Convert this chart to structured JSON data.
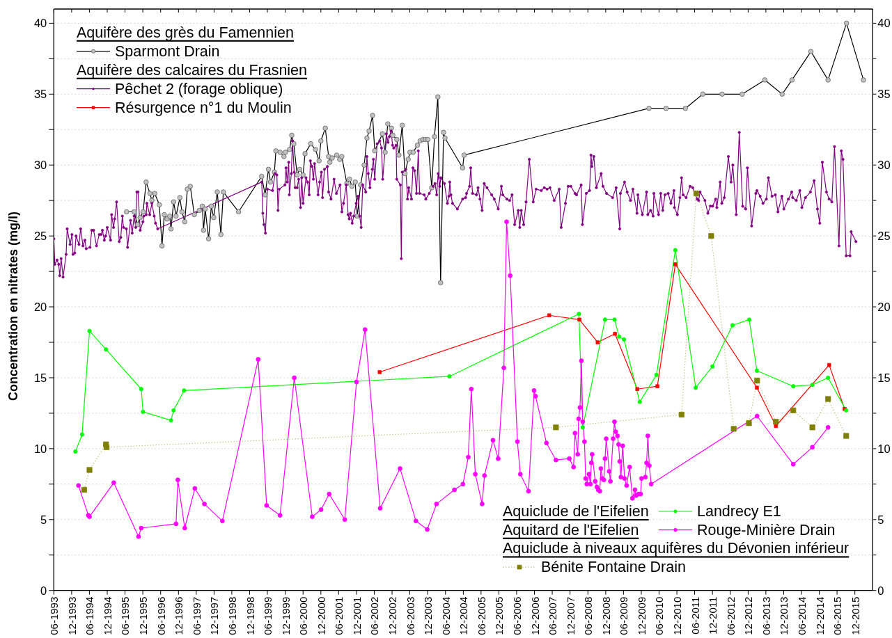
{
  "chart_data": {
    "type": "line",
    "ylabel": "Concentration en nitrates (mg/l)",
    "annotations": [
      "Aquifère des grès du Famennien",
      "Aquifère des calcaires du Frasnien",
      "Aquiclude de l'Eifelien",
      "Aquitard de l'Eifelien",
      "Aquiclude à niveaux aquifères du Dévonien inférieur"
    ],
    "legend": "center",
    "grid": "y",
    "xlim": [
      "1993-06",
      "2016-06"
    ],
    "xticks": [
      {
        "value": "1993-06",
        "label": "06-1993"
      },
      {
        "value": "1993-12",
        "label": "12-1993"
      },
      {
        "value": "1994-06",
        "label": "06-1994"
      },
      {
        "value": "1994-12",
        "label": "12-1994"
      },
      {
        "value": "1995-06",
        "label": "06-1995"
      },
      {
        "value": "1995-12",
        "label": "12-1995"
      },
      {
        "value": "1996-06",
        "label": "06-1996"
      },
      {
        "value": "1996-12",
        "label": "12-1996"
      },
      {
        "value": "1997-06",
        "label": "06-1997"
      },
      {
        "value": "1997-12",
        "label": "12-1997"
      },
      {
        "value": "1998-06",
        "label": "06-1998"
      },
      {
        "value": "1998-12",
        "label": "12-1998"
      },
      {
        "value": "1999-06",
        "label": "06-1999"
      },
      {
        "value": "1999-12",
        "label": "12-1999"
      },
      {
        "value": "2000-06",
        "label": "06-2000"
      },
      {
        "value": "2000-12",
        "label": "12-2000"
      },
      {
        "value": "2001-06",
        "label": "06-2001"
      },
      {
        "value": "2001-12",
        "label": "12-2001"
      },
      {
        "value": "2002-06",
        "label": "06-2002"
      },
      {
        "value": "2002-12",
        "label": "12-2002"
      },
      {
        "value": "2003-06",
        "label": "06-2003"
      },
      {
        "value": "2003-12",
        "label": "12-2003"
      },
      {
        "value": "2004-06",
        "label": "06-2004"
      },
      {
        "value": "2004-12",
        "label": "12-2004"
      },
      {
        "value": "2005-06",
        "label": "06-2005"
      },
      {
        "value": "2005-12",
        "label": "12-2005"
      },
      {
        "value": "2006-06",
        "label": "06-2006"
      },
      {
        "value": "2006-12",
        "label": "12-2006"
      },
      {
        "value": "2007-06",
        "label": "06-2007"
      },
      {
        "value": "2007-12",
        "label": "12-2007"
      },
      {
        "value": "2008-06",
        "label": "06-2008"
      },
      {
        "value": "2008-12",
        "label": "12-2008"
      },
      {
        "value": "2009-06",
        "label": "06-2009"
      },
      {
        "value": "2009-12",
        "label": "12-2009"
      },
      {
        "value": "2010-06",
        "label": "06-2010"
      },
      {
        "value": "2010-12",
        "label": "12-2010"
      },
      {
        "value": "2011-06",
        "label": "06-2011"
      },
      {
        "value": "2011-12",
        "label": "12-2011"
      },
      {
        "value": "2012-06",
        "label": "06-2012"
      },
      {
        "value": "2012-12",
        "label": "12-2012"
      },
      {
        "value": "2013-06",
        "label": "06-2013"
      },
      {
        "value": "2013-12",
        "label": "12-2013"
      },
      {
        "value": "2014-06",
        "label": "06-2014"
      },
      {
        "value": "2014-12",
        "label": "12-2014"
      },
      {
        "value": "2015-06",
        "label": "06-2015"
      },
      {
        "value": "2015-12",
        "label": "12-2015"
      }
    ],
    "ylim": [
      0,
      41
    ],
    "yticks": [
      0,
      {
        "value": 2.5,
        "label": null
      },
      5,
      {
        "value": 7.5,
        "label": null
      },
      10,
      {
        "value": 12.5,
        "label": null
      },
      15,
      {
        "value": 17.5,
        "label": null
      },
      20,
      {
        "value": 22.5,
        "label": null
      },
      25,
      {
        "value": 27.5,
        "label": null
      },
      30,
      {
        "value": 32.5,
        "label": null
      },
      35,
      {
        "value": 37.5,
        "label": null
      },
      40
    ],
    "y2lim": [
      0,
      41
    ],
    "y2ticks": [
      0,
      {
        "value": 2.5,
        "label": null
      },
      5,
      {
        "value": 7.5,
        "label": null
      },
      10,
      {
        "value": 12.5,
        "label": null
      },
      15,
      {
        "value": 17.5,
        "label": null
      },
      20,
      {
        "value": 22.5,
        "label": null
      },
      25,
      {
        "value": 27.5,
        "label": null
      },
      30,
      {
        "value": 32.5,
        "label": null
      },
      35,
      {
        "value": 37.5,
        "label": null
      },
      40
    ],
    "series": [
      {
        "name": "Sparmont Drain",
        "color": "#000000",
        "marker": "circle",
        "line_style": "solid",
        "x": [
          "1995-06-17",
          "1995-09-03",
          "1995-10-08",
          "1995-11-03",
          "1995-12-04",
          "1996-01-04",
          "1996-02-12",
          "1996-03-03",
          "1996-04-01",
          "1996-05-18",
          "1996-06-15",
          "1996-07-08",
          "1996-08-06",
          "1996-09-02",
          "1996-09-15",
          "1996-10-12",
          "1996-11-06",
          "1996-12-15",
          "1997-01-06",
          "1997-02-03",
          "1997-03-02",
          "1997-04-01",
          "1997-05-12",
          "1997-07-03",
          "1997-08-03",
          "1997-08-15",
          "1997-09-01",
          "1997-10-06",
          "1997-11-03",
          "1997-11-27",
          "1998-01-03",
          "1998-02-09",
          "1998-03-06",
          "1998-08-09",
          "1999-04-03",
          "1999-05-09",
          "1999-06-12",
          "1999-07-03",
          "1999-08-12",
          "1999-08-27",
          "1999-10-09",
          "1999-11-18",
          "1999-12-03",
          "2000-01-15",
          "2000-02-06",
          "2000-02-27",
          "2000-04-01",
          "2000-04-27",
          "2000-06-01",
          "2000-06-21",
          "2000-08-19",
          "2000-10-06",
          "2000-11-12",
          "2000-12-01",
          "2001-01-15",
          "2001-02-18",
          "2001-03-03",
          "2001-03-27",
          "2001-05-12",
          "2001-06-12",
          "2001-07-03",
          "2001-08-24",
          "2001-09-21",
          "2001-10-15",
          "2001-11-18",
          "2001-12-09",
          "2002-01-12",
          "2002-02-18",
          "2002-03-18",
          "2002-04-09",
          "2002-05-15",
          "2002-06-06",
          "2002-08-24",
          "2002-09-21",
          "2002-10-18",
          "2002-11-24",
          "2002-12-09",
          "2003-01-18",
          "2003-02-09",
          "2003-03-15",
          "2003-04-12",
          "2003-05-15",
          "2003-06-03",
          "2003-07-06",
          "2003-08-18",
          "2003-09-15",
          "2003-10-15",
          "2003-11-09",
          "2003-12-03",
          "2004-01-12",
          "2004-02-09",
          "2004-03-15",
          "2004-04-12",
          "2004-05-12",
          "2004-05-27",
          "2004-11-24",
          "2004-12-09",
          "2010-02-18",
          "2010-08-12",
          "2011-02-27",
          "2011-08-24",
          "2012-03-09",
          "2012-10-01",
          "2013-05-21",
          "2013-11-15",
          "2014-02-24",
          "2014-09-06",
          "2015-03-01",
          "2015-09-06",
          "2016-02-27"
        ],
        "values": [
          26.7,
          26.7,
          25.8,
          26.3,
          26.7,
          28.8,
          28.0,
          27.5,
          28.0,
          27.2,
          24.3,
          26.5,
          26.2,
          26.4,
          25.5,
          27.4,
          26.4,
          27.7,
          26.7,
          26.0,
          28.3,
          28.5,
          26.5,
          26.8,
          27.1,
          25.4,
          26.9,
          24.8,
          27.1,
          26.3,
          28.1,
          25.1,
          28.1,
          26.7,
          29.2,
          27.9,
          29.7,
          28.8,
          29.5,
          31.0,
          30.9,
          30.6,
          30.9,
          31.1,
          32.1,
          31.5,
          29.3,
          29.7,
          29.3,
          30.8,
          31.5,
          31.1,
          30.3,
          31.7,
          32.6,
          30.6,
          30.2,
          30.5,
          30.7,
          30.4,
          30.6,
          28.7,
          29.0,
          28.5,
          28.8,
          26.4,
          28.6,
          30.0,
          31.9,
          32.4,
          33.5,
          31.0,
          32.2,
          30.9,
          32.9,
          32.6,
          32.1,
          31.8,
          30.7,
          32.8,
          29.4,
          30.4,
          30.9,
          30.9,
          31.4,
          31.7,
          31.8,
          31.8,
          31.8,
          28.4,
          32.0,
          34.8,
          21.7,
          32.3,
          31.9,
          29.8,
          30.7,
          34.0,
          34.0,
          34.0,
          35.0,
          35.0,
          35.0,
          36.0,
          35.0,
          36.0,
          38.0,
          36.0,
          40.0,
          36.0
        ]
      },
      {
        "name": "Pêchet 2 (forage oblique)",
        "color": "#800080",
        "marker": "circle",
        "line_style": "solid",
        "x": [
          "1993-06-01",
          "1993-06-11",
          "1993-07-04",
          "1993-07-21",
          "1993-08-01",
          "1993-08-15",
          "1993-09-04",
          "1993-10-05",
          "1993-10-16",
          "1993-11-15",
          "1993-12-04",
          "1993-12-15",
          "1994-01-02",
          "1994-01-15",
          "1994-02-14",
          "1994-03-03",
          "1994-03-27",
          "1994-04-15",
          "1994-04-29",
          "1994-06-07",
          "1994-06-25",
          "1994-07-14",
          "1994-08-13",
          "1994-09-10",
          "1994-09-29",
          "1994-10-13",
          "1994-11-01",
          "1994-11-14",
          "1994-12-01",
          "1995-01-04",
          "1995-01-15",
          "1995-02-04",
          "1995-02-15",
          "1995-03-07",
          "1995-04-03",
          "1995-04-19",
          "1995-05-05",
          "1995-05-17",
          "1995-06-15",
          "1995-06-28",
          "1995-07-28",
          "1995-08-14",
          "1995-09-03",
          "1995-09-19",
          "1995-10-01",
          "1995-10-13",
          "1995-11-04",
          "1995-12-02",
          "1995-12-11",
          "1996-01-05",
          "1996-01-12",
          "1996-02-10",
          "1996-03-03",
          "1996-03-27",
          "1996-04-09",
          "1996-05-02",
          "1999-04-04",
          "1999-04-15",
          "1999-04-27",
          "1999-05-12",
          "1999-06-01",
          "1999-07-24",
          "1999-08-19",
          "1999-09-06",
          "1999-09-18",
          "1999-09-30",
          "1999-11-28",
          "1999-12-09",
          "1999-12-21",
          "2000-01-06",
          "2000-01-12",
          "2000-02-02",
          "2000-02-13",
          "2000-03-02",
          "2000-03-12",
          "2000-04-01",
          "2000-04-17",
          "2000-05-06",
          "2000-05-18",
          "2000-06-01",
          "2000-07-01",
          "2000-07-18",
          "2000-08-03",
          "2000-08-15",
          "2000-09-01",
          "2000-09-15",
          "2000-09-27",
          "2000-11-02",
          "2000-11-18",
          "2000-12-06",
          "2000-12-18",
          "2001-01-06",
          "2001-02-06",
          "2001-02-18",
          "2001-03-15",
          "2001-04-15",
          "2001-05-09",
          "2001-06-15",
          "2001-07-04",
          "2001-07-21",
          "2001-08-18",
          "2001-09-06",
          "2001-09-18",
          "2001-10-01",
          "2001-10-18",
          "2001-11-03",
          "2001-11-28",
          "2001-12-18",
          "2002-01-03",
          "2002-01-18",
          "2002-02-03",
          "2002-03-06",
          "2002-03-18",
          "2002-04-01",
          "2002-04-18",
          "2002-05-12",
          "2002-05-24",
          "2002-06-06",
          "2002-07-01",
          "2002-07-27",
          "2002-08-15",
          "2002-08-27",
          "2002-10-03",
          "2002-10-21",
          "2002-11-03",
          "2002-11-21",
          "2002-12-06",
          "2002-12-18",
          "2003-01-12",
          "2003-01-18",
          "2003-02-24",
          "2003-03-06",
          "2003-03-15",
          "2003-04-21",
          "2003-05-09",
          "2003-05-21",
          "2003-06-18",
          "2003-07-03",
          "2003-07-21",
          "2003-08-09",
          "2003-08-27",
          "2003-09-09",
          "2003-10-27",
          "2003-11-12",
          "2003-12-18",
          "2004-01-27",
          "2004-02-15",
          "2004-03-03",
          "2004-03-18",
          "2004-04-03",
          "2004-04-15",
          "2004-05-21",
          "2004-06-21",
          "2004-07-06",
          "2004-07-15",
          "2004-07-27",
          "2004-08-12",
          "2004-10-01",
          "2004-11-24",
          "2004-12-24",
          "2005-01-03",
          "2005-02-03",
          "2005-02-15",
          "2005-03-06",
          "2005-04-15",
          "2005-05-01",
          "2005-05-21",
          "2005-06-12",
          "2005-07-03",
          "2005-08-01",
          "2005-09-18",
          "2005-10-15",
          "2005-11-24",
          "2005-12-27",
          "2006-01-09",
          "2006-02-21",
          "2006-03-21",
          "2006-04-15",
          "2006-05-12",
          "2006-06-18",
          "2006-07-03",
          "2006-07-18",
          "2006-08-12",
          "2006-09-06",
          "2006-10-09",
          "2006-11-18",
          "2006-12-18",
          "2007-02-09",
          "2007-03-12",
          "2007-04-09",
          "2007-05-09",
          "2007-06-21",
          "2007-08-12",
          "2007-09-01",
          "2007-10-15",
          "2007-11-12",
          "2007-12-09",
          "2008-01-21",
          "2008-02-06",
          "2008-03-24",
          "2008-04-06",
          "2008-05-15",
          "2008-06-18",
          "2008-07-03",
          "2008-07-12",
          "2008-08-01",
          "2008-08-27",
          "2008-10-15",
          "2008-11-03",
          "2008-12-09",
          "2009-02-09",
          "2009-03-18",
          "2009-04-24",
          "2009-05-01",
          "2009-06-12",
          "2009-07-09",
          "2009-08-12",
          "2009-09-06",
          "2009-10-18",
          "2009-10-27",
          "2009-12-12",
          "2010-01-24",
          "2010-02-06",
          "2010-03-06",
          "2010-04-01",
          "2010-04-09",
          "2010-05-27",
          "2010-06-18",
          "2010-07-09",
          "2010-08-01",
          "2010-09-03",
          "2010-10-01",
          "2010-11-01",
          "2010-11-06",
          "2010-12-06",
          "2011-01-01",
          "2011-01-18",
          "2011-02-03",
          "2011-03-06",
          "2011-04-15",
          "2011-05-12",
          "2011-06-27",
          "2011-07-12",
          "2011-07-27",
          "2011-09-15",
          "2011-10-15",
          "2011-11-09",
          "2011-12-03",
          "2012-01-03",
          "2012-01-15",
          "2012-02-18",
          "2012-03-06",
          "2012-04-01",
          "2012-05-12",
          "2012-06-09",
          "2012-06-27",
          "2012-08-01",
          "2012-09-01",
          "2012-10-06",
          "2012-11-06",
          "2012-11-24",
          "2013-01-06",
          "2013-02-18",
          "2013-03-01",
          "2013-04-03",
          "2013-05-03",
          "2013-06-06",
          "2013-06-27",
          "2013-08-03",
          "2013-09-06",
          "2013-10-03",
          "2013-11-12",
          "2013-12-03",
          "2014-01-18",
          "2014-02-21",
          "2014-03-03",
          "2014-04-09",
          "2014-05-15",
          "2014-06-06",
          "2014-07-12",
          "2014-09-01",
          "2014-10-09",
          "2014-11-12",
          "2014-12-06",
          "2015-01-01",
          "2015-02-12",
          "2015-03-12",
          "2015-04-09",
          "2015-05-06",
          "2015-06-21",
          "2015-07-15",
          "2015-08-01",
          "2015-09-03",
          "2015-10-12",
          "2015-10-24",
          "2015-12-12"
        ],
        "values": [
          24.8,
          23.0,
          23.3,
          23.0,
          22.2,
          23.4,
          22.1,
          23.7,
          25.5,
          24.4,
          25.1,
          23.7,
          23.8,
          25.0,
          24.4,
          25.5,
          24.3,
          24.7,
          24.1,
          24.2,
          25.4,
          25.4,
          24.3,
          25.1,
          25.1,
          25.4,
          24.7,
          25.0,
          25.6,
          24.7,
          26.5,
          25.6,
          26.2,
          27.4,
          24.6,
          24.9,
          26.4,
          25.6,
          25.5,
          24.2,
          26.1,
          25.2,
          26.4,
          25.6,
          28.1,
          28.1,
          25.4,
          26.0,
          26.4,
          26.5,
          27.3,
          26.5,
          27.3,
          26.4,
          25.9,
          25.5,
          28.8,
          26.6,
          25.8,
          25.2,
          28.3,
          28.2,
          29.4,
          29.3,
          26.8,
          28.3,
          28.6,
          29.8,
          28.8,
          30.2,
          27.9,
          29.4,
          31.7,
          29.5,
          28.4,
          28.4,
          29.0,
          27.0,
          29.1,
          27.3,
          29.1,
          28.8,
          27.9,
          30.3,
          29.9,
          29.0,
          30.1,
          27.9,
          28.8,
          29.5,
          27.7,
          29.7,
          29.9,
          28.1,
          27.6,
          29.0,
          28.0,
          28.6,
          26.7,
          27.3,
          28.6,
          26.5,
          26.2,
          26.6,
          25.9,
          26.4,
          27.3,
          27.8,
          26.4,
          25.6,
          28.6,
          28.1,
          30.6,
          29.4,
          28.4,
          29.7,
          30.4,
          29.0,
          31.5,
          31.7,
          31.2,
          29.0,
          32.2,
          31.6,
          32.0,
          32.4,
          31.4,
          31.2,
          31.4,
          29.0,
          28.6,
          23.4,
          29.5,
          29.7,
          27.6,
          28.4,
          27.6,
          29.8,
          29.6,
          28.0,
          31.0,
          28.0,
          27.9,
          27.6,
          28.0,
          28.5,
          28.7,
          27.9,
          29.4,
          28.5,
          29.1,
          28.7,
          27.3,
          27.8,
          28.8,
          27.9,
          27.3,
          26.9,
          27.6,
          27.7,
          28.0,
          28.5,
          29.8,
          28.0,
          27.9,
          28.4,
          27.6,
          26.8,
          28.7,
          28.4,
          27.9,
          27.6,
          26.9,
          28.5,
          27.9,
          27.6,
          27.5,
          27.9,
          25.8,
          26.8,
          25.6,
          26.8,
          25.8,
          27.4,
          30.4,
          27.4,
          28.3,
          28.2,
          28.4,
          28.3,
          28.4,
          27.5,
          28.3,
          25.6,
          27.3,
          28.5,
          28.5,
          28.0,
          27.9,
          28.6,
          25.8,
          28.0,
          28.2,
          30.7,
          29.9,
          30.6,
          28.4,
          29.4,
          28.5,
          28.0,
          27.7,
          28.4,
          25.5,
          28.0,
          28.8,
          28.1,
          27.5,
          28.3,
          26.6,
          27.9,
          26.5,
          28.1,
          26.5,
          26.8,
          26.4,
          28.0,
          26.5,
          28.0,
          26.8,
          27.9,
          28.0,
          27.3,
          28.2,
          27.0,
          26.5,
          27.7,
          29.1,
          27.9,
          27.7,
          28.5,
          28.4,
          27.6,
          27.5,
          28.1,
          27.5,
          26.6,
          27.1,
          27.1,
          27.6,
          27.0,
          28.8,
          27.3,
          27.7,
          30.6,
          28.8,
          30.0,
          26.5,
          32.3,
          27.1,
          26.9,
          29.8,
          25.7,
          28.0,
          28.2,
          27.8,
          27.3,
          27.6,
          29.1,
          27.8,
          27.9,
          26.7,
          27.8,
          26.9,
          27.6,
          28.1,
          27.7,
          27.5,
          28.2,
          27.0,
          27.7,
          28.1,
          28.9,
          26.9,
          25.9,
          30.2,
          28.1,
          27.6,
          27.4,
          31.3,
          24.3,
          31.0,
          30.4,
          23.6,
          23.6,
          25.3,
          24.6
        ]
      },
      {
        "name": "Résurgence n°1 du Moulin",
        "color": "#ff0000",
        "marker": "square",
        "line_style": "solid",
        "x": [
          "2002-07-27",
          "2007-05-01",
          "2008-03-06",
          "2008-09-09",
          "2009-03-06",
          "2009-10-21",
          "2010-05-15",
          "2010-11-15",
          "2013-03-01",
          "2013-09-12",
          "2015-03-12",
          "2015-08-18"
        ],
        "values": [
          15.4,
          19.4,
          19.1,
          17.5,
          18.1,
          14.2,
          14.4,
          23.0,
          14.3,
          11.6,
          15.9,
          12.8
        ]
      },
      {
        "name": "Landrecy E1",
        "color": "#00ff00",
        "marker": "circle",
        "line_style": "solid",
        "x": [
          "1994-01-09",
          "1994-03-18",
          "1994-06-02",
          "1994-11-18",
          "1995-11-15",
          "1995-12-03",
          "1996-09-15",
          "1996-10-12",
          "1997-01-27",
          "2004-07-12",
          "2008-03-01",
          "2008-04-09",
          "2008-11-24",
          "2009-03-01",
          "2009-04-18",
          "2009-06-06",
          "2009-11-15",
          "2010-05-06",
          "2010-11-15",
          "2011-06-12",
          "2011-12-01",
          "2012-06-24",
          "2012-12-12",
          "2013-03-01",
          "2014-03-09",
          "2014-09-21",
          "2015-03-01",
          "2015-09-03"
        ],
        "values": [
          9.8,
          11.0,
          18.3,
          17.0,
          14.2,
          12.6,
          12.0,
          12.7,
          14.1,
          15.1,
          19.5,
          11.5,
          19.1,
          19.1,
          17.9,
          17.7,
          13.3,
          15.2,
          24.0,
          14.3,
          15.8,
          18.7,
          19.1,
          15.5,
          14.4,
          14.5,
          15.0,
          12.7
        ]
      },
      {
        "name": "Rouge-Minière Drain",
        "color": "#ff00ff",
        "marker": "circle",
        "line_style": "solid",
        "x": [
          "1994-02-09",
          "1994-05-21",
          "1994-06-02",
          "1995-02-06",
          "1995-10-18",
          "1995-11-15",
          "1996-11-06",
          "1996-11-24",
          "1997-02-03",
          "1997-05-18",
          "1997-08-24",
          "1998-02-24",
          "1999-02-27",
          "1999-05-24",
          "1999-10-09",
          "2000-03-03",
          "2000-09-03",
          "2000-12-03",
          "2001-02-24",
          "2001-08-03",
          "2001-12-01",
          "2002-02-27",
          "2002-08-01",
          "2003-02-21",
          "2003-08-03",
          "2003-11-27",
          "2004-03-01",
          "2004-09-01",
          "2004-11-27",
          "2005-01-21",
          "2005-02-21",
          "2005-04-03",
          "2005-06-12",
          "2005-07-06",
          "2005-10-01",
          "2005-11-24",
          "2006-01-21",
          "2006-02-18",
          "2006-03-27",
          "2006-06-09",
          "2006-07-09",
          "2006-10-01",
          "2006-11-27",
          "2006-12-12",
          "2007-04-03",
          "2007-07-09",
          "2007-11-24",
          "2008-01-06",
          "2008-01-21",
          "2008-02-18",
          "2008-02-27",
          "2008-03-12",
          "2008-03-27",
          "2008-04-09",
          "2008-04-27",
          "2008-05-09",
          "2008-05-21",
          "2008-06-12",
          "2008-06-27",
          "2008-07-06",
          "2008-07-15",
          "2008-08-15",
          "2008-09-01",
          "2008-09-15",
          "2008-10-01",
          "2008-10-12",
          "2008-10-27",
          "2008-11-12",
          "2008-11-24",
          "2008-12-06",
          "2009-01-06",
          "2009-01-18",
          "2009-02-15",
          "2009-03-01",
          "2009-03-12",
          "2009-04-01",
          "2009-04-12",
          "2009-04-24",
          "2009-05-06",
          "2009-05-24",
          "2009-06-12",
          "2009-07-03",
          "2009-08-03",
          "2009-09-01",
          "2009-09-27",
          "2009-10-09",
          "2009-11-03",
          "2009-11-24",
          "2009-12-03",
          "2010-01-12",
          "2010-01-24",
          "2010-02-06",
          "2010-02-21",
          "2010-03-12",
          "2013-03-03",
          "2014-03-09",
          "2014-09-21",
          "2015-03-01"
        ],
        "values": [
          7.4,
          5.3,
          5.2,
          7.6,
          3.8,
          4.4,
          4.7,
          7.8,
          4.4,
          7.2,
          6.1,
          4.9,
          16.3,
          6.0,
          5.3,
          15.0,
          5.2,
          5.7,
          6.8,
          5.0,
          14.7,
          18.4,
          5.8,
          8.6,
          4.9,
          4.3,
          6.1,
          7.1,
          7.5,
          9.4,
          14.2,
          8.2,
          6.1,
          8.1,
          10.6,
          9.3,
          15.7,
          26.0,
          22.2,
          10.5,
          8.2,
          7.0,
          14.1,
          13.7,
          10.4,
          9.2,
          9.3,
          8.7,
          11.1,
          9.6,
          12.1,
          12.9,
          16.2,
          11.9,
          10.5,
          7.9,
          7.5,
          8.2,
          7.5,
          9.0,
          9.6,
          7.7,
          7.3,
          7.1,
          7.0,
          8.6,
          7.9,
          7.8,
          9.3,
          10.7,
          8.4,
          7.7,
          10.7,
          11.9,
          11.2,
          10.9,
          10.3,
          9.1,
          8.0,
          10.2,
          7.9,
          7.4,
          8.7,
          6.5,
          7.1,
          6.7,
          6.8,
          6.8,
          7.9,
          8.0,
          9.0,
          10.9,
          8.8,
          7.5,
          12.3,
          8.9,
          10.1,
          11.5
        ]
      },
      {
        "name": "Bénite Fontaine Drain",
        "color": "#808000",
        "marker": "square",
        "line_style": "dotted",
        "x": [
          "1994-04-08",
          "1994-06-02",
          "1994-11-18",
          "1994-11-24",
          "2007-07-09",
          "2011-01-18",
          "2011-06-18",
          "2011-11-18",
          "2012-07-06",
          "2012-12-09",
          "2013-03-03",
          "2013-09-12",
          "2014-03-09",
          "2014-09-21",
          "2015-03-01",
          "2015-09-03"
        ],
        "values": [
          7.1,
          8.5,
          10.3,
          10.1,
          11.5,
          12.4,
          28.0,
          25.0,
          11.4,
          11.8,
          14.8,
          11.9,
          12.7,
          11.5,
          13.5,
          10.9
        ]
      }
    ]
  }
}
